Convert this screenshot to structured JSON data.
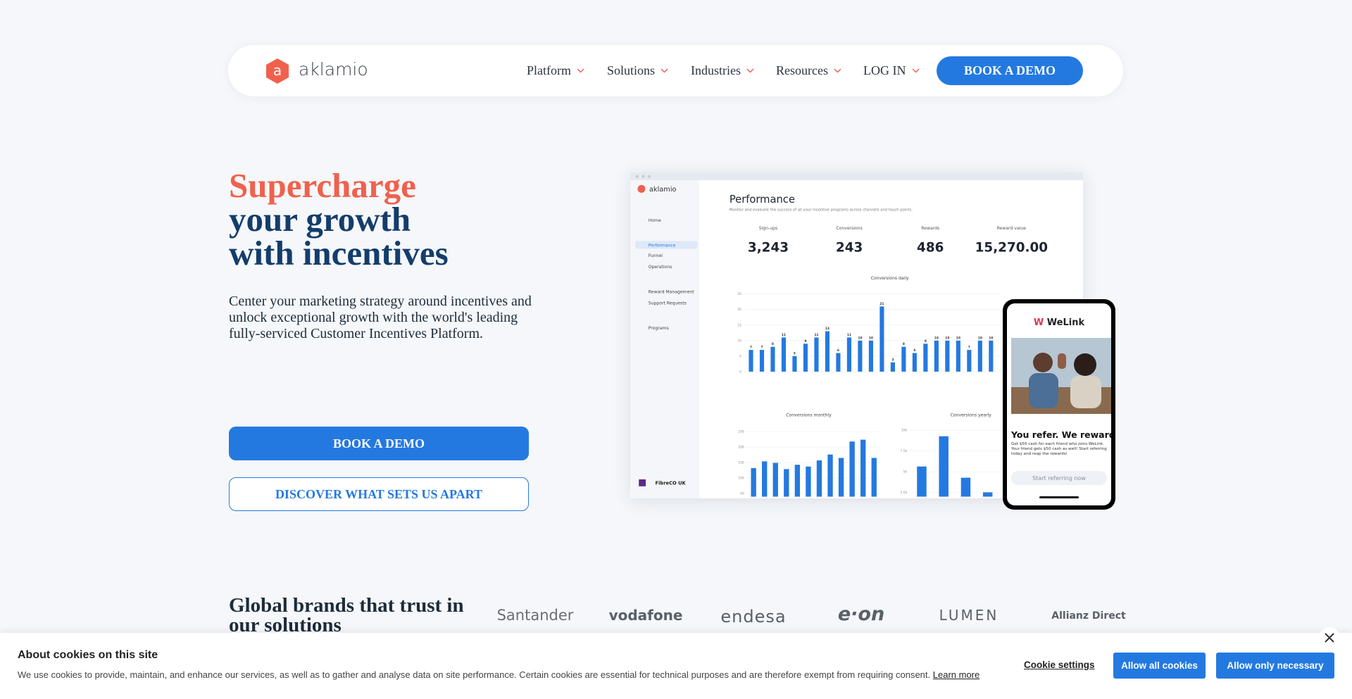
{
  "nav": {
    "logo": "aklamio",
    "items": [
      "Platform",
      "Solutions",
      "Industries",
      "Resources",
      "LOG IN"
    ],
    "cta": "BOOK A DEMO"
  },
  "hero": {
    "title_accent": "Supercharge",
    "title_lines": [
      "your growth",
      "with incentives"
    ],
    "text": "Center your marketing strategy around incentives and unlock exceptional growth with the world's leading fully-serviced Customer Incentives Platform.",
    "primary_button": "BOOK A DEMO",
    "secondary_button": "DISCOVER WHAT SETS US APART"
  },
  "dashboard": {
    "logo": "aklamio",
    "menu": [
      "Home",
      "Performance",
      "Funnel",
      "Operations",
      "Reward Management",
      "Support Requests",
      "Programs"
    ],
    "account": "FibreCO UK",
    "title": "Performance",
    "subtitle": "Monitor and evaluate the success of all your incentive programs across channels and touch points.",
    "stats": [
      {
        "label": "Sign-ups",
        "value": "3,243"
      },
      {
        "label": "Conversions",
        "value": "243"
      },
      {
        "label": "Rewards",
        "value": "486"
      },
      {
        "label": "Reward value",
        "value": "15,270.00"
      }
    ],
    "daily": {
      "title": "Conversions daily",
      "ylim": [
        0,
        25
      ],
      "yticks": [
        0,
        5,
        10,
        15,
        20,
        25
      ],
      "values": [
        7,
        7,
        8,
        11,
        5,
        9,
        11,
        13,
        6,
        11,
        10,
        10,
        21,
        3,
        8,
        6,
        9,
        10,
        10,
        10,
        7,
        10,
        10
      ]
    },
    "monthly": {
      "title": "Conversions monthly",
      "ylim": [
        40,
        260
      ],
      "yticks": [
        50,
        100,
        150,
        200,
        250
      ],
      "values": [
        132,
        154,
        149,
        129,
        143,
        137,
        157,
        176,
        165,
        218,
        224,
        165
      ]
    },
    "yearly": {
      "title": "Conversions yearly",
      "ylim": [
        2000,
        10200
      ],
      "yticks": [
        {
          "value": 2500,
          "label": "2.5k"
        },
        {
          "value": 5000,
          "label": "5k"
        },
        {
          "value": 7500,
          "label": "7.5k"
        },
        {
          "value": 10000,
          "label": "10k"
        }
      ],
      "values": [
        5630,
        9270,
        4280,
        2520
      ]
    }
  },
  "phone": {
    "brand": "WeLink",
    "headline": "You refer. We reward.",
    "text": "Get $50 cash for each friend who joins WeLink. Your friend gets $50 cash as well! Start referring today and reap the rewards!",
    "button": "Start referring now"
  },
  "brands": {
    "title": "Global brands that trust in our solutions",
    "logos": [
      "Santander",
      "vodafone",
      "endesa",
      "e·on",
      "LUMEN",
      "Allianz Direct"
    ]
  },
  "cookies": {
    "title": "About cookies on this site",
    "text": "We use cookies to provide, maintain, and enhance our services, as well as to gather and analyse data on site performance. Certain cookies are essential for technical purposes and are therefore exempt from requiring consent.",
    "link": "Learn more",
    "settings": "Cookie settings",
    "allow_all": "Allow all cookies",
    "allow_necessary": "Allow only necessary"
  }
}
